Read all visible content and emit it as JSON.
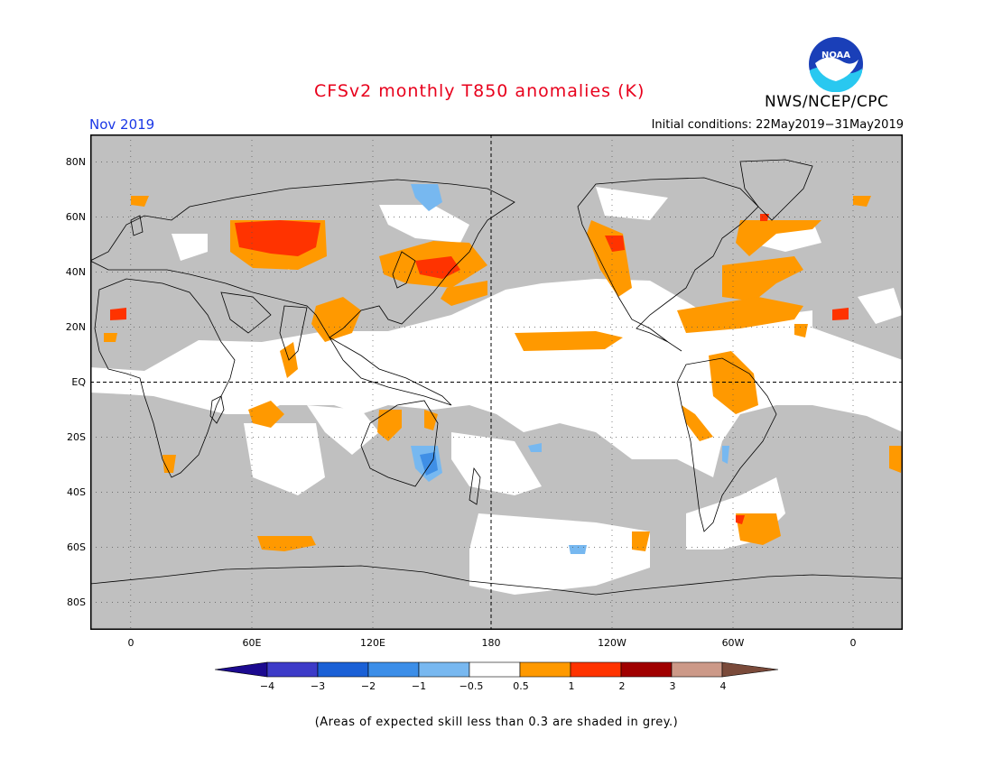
{
  "header": {
    "title": "CFSv2 monthly T850 anomalies (K)",
    "agency": "NWS/NCEP/CPC",
    "month": "Nov 2019",
    "initial_conditions": "Initial conditions: 22May2019−31May2019",
    "logo_text": "NOAA"
  },
  "map": {
    "projection": "equirectangular",
    "lon_range": [
      -20,
      382
    ],
    "lat_range": [
      -90,
      90
    ],
    "lat_labels": [
      "80N",
      "60N",
      "40N",
      "20N",
      "EQ",
      "20S",
      "40S",
      "60S",
      "80S"
    ],
    "lon_labels": [
      "0",
      "60E",
      "120E",
      "180",
      "120W",
      "60W",
      "0"
    ],
    "colors": {
      "low_skill": "#c0c0c0",
      "coast": "#000000",
      "class_0.5_1": "#ff9900",
      "class_1_2": "#ff3300",
      "class_neg_0.5": "#77b8f0",
      "class_neg_1": "#3f8fe6"
    }
  },
  "colorbar": {
    "labels": [
      "−4",
      "−3",
      "−2",
      "−1",
      "−0.5",
      "0.5",
      "1",
      "2",
      "3",
      "4"
    ],
    "colors": [
      "#1c0a90",
      "#3d3bc8",
      "#1a60d6",
      "#3c8ee8",
      "#78b8f0",
      "#ffffff",
      "#ff9900",
      "#ff3300",
      "#a00000",
      "#cc9988",
      "#7a4a3a"
    ]
  },
  "footnote": "(Areas of expected skill less than 0.3 are shaded in grey.)"
}
